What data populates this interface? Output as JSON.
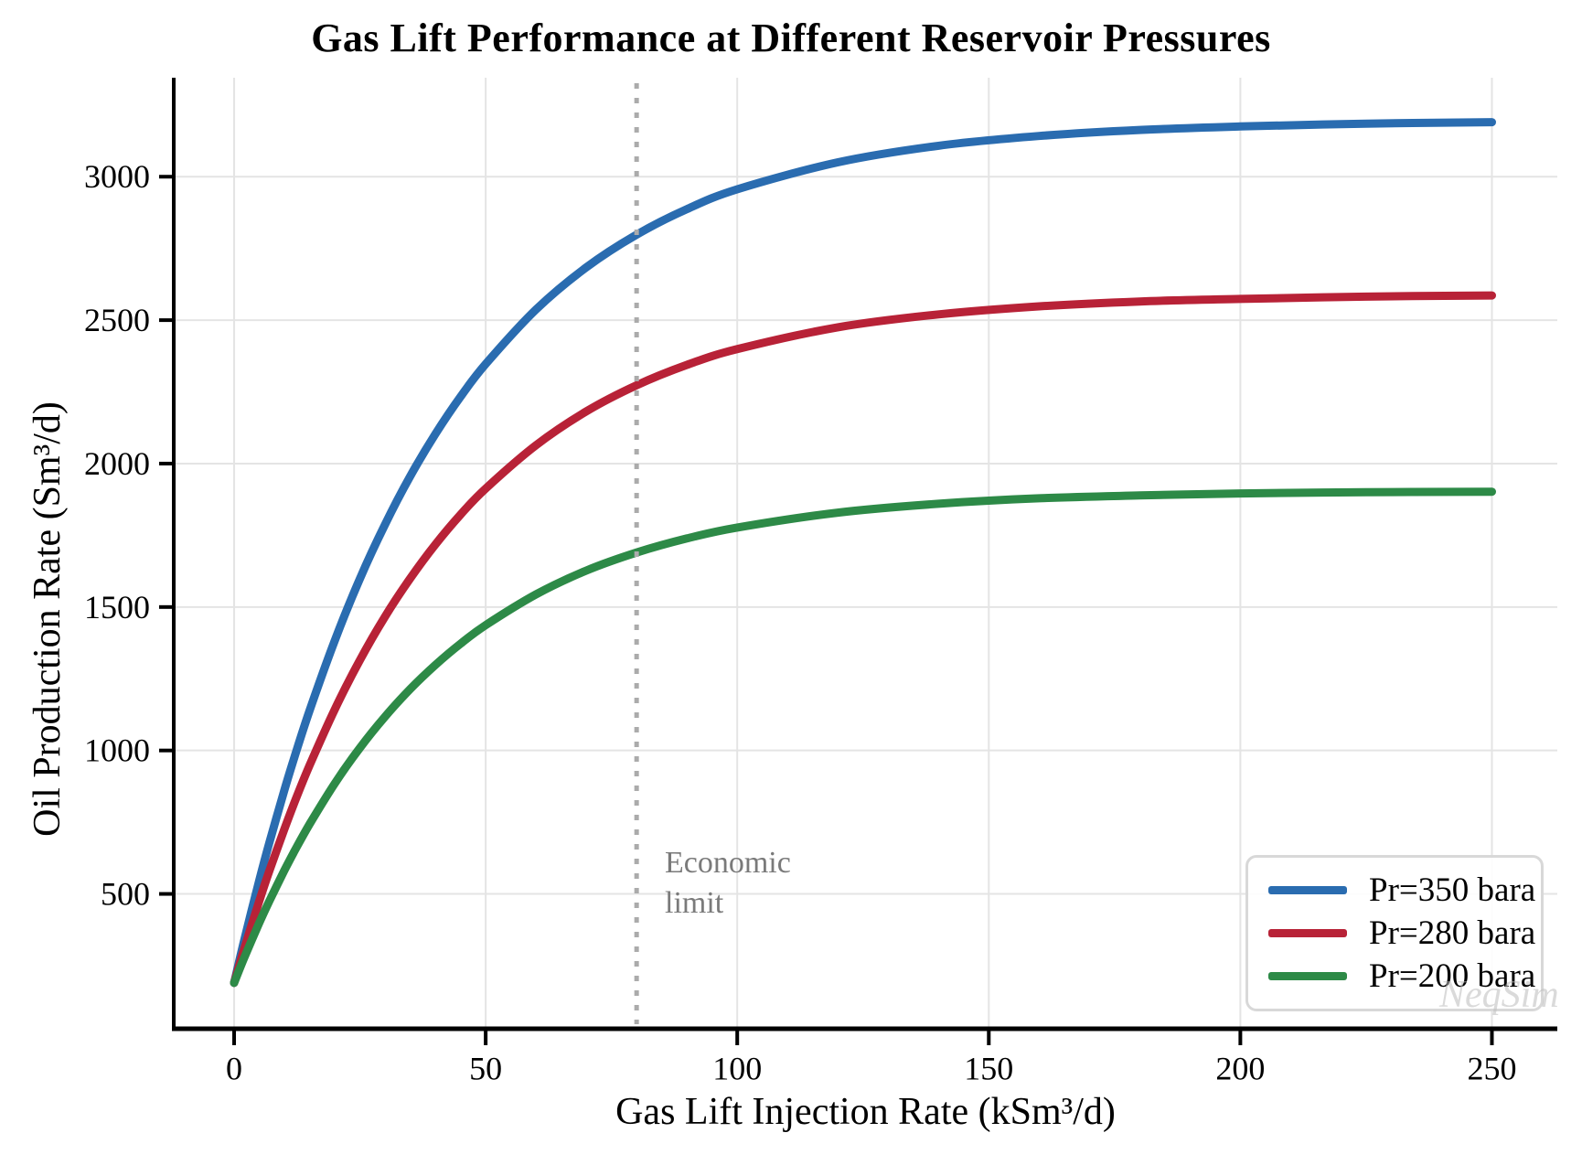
{
  "chart_data": {
    "type": "line",
    "title": "Gas Lift Performance at Different Reservoir Pressures",
    "xlabel": "Gas Lift Injection Rate (kSm³/d)",
    "ylabel": "Oil Production Rate (Sm³/d)",
    "xlim": [
      -12,
      263
    ],
    "ylim": [
      30,
      3345
    ],
    "xticks": [
      0,
      50,
      100,
      150,
      200,
      250
    ],
    "yticks": [
      500,
      1000,
      1500,
      2000,
      2500,
      3000
    ],
    "grid": true,
    "legend_position": "lower right",
    "x": [
      0,
      2,
      5,
      7,
      10,
      12,
      15,
      20,
      25,
      30,
      35,
      40,
      45,
      50,
      60,
      70,
      80,
      90,
      100,
      120,
      140,
      160,
      180,
      200,
      225,
      250
    ],
    "series": [
      {
        "name": "Pr=350 bara",
        "color": "#2a6cb0",
        "values": [
          190,
          338,
          547,
          678,
          862,
          977,
          1139,
          1383,
          1599,
          1788,
          1956,
          2103,
          2233,
          2347,
          2537,
          2684,
          2798,
          2887,
          2956,
          3050,
          3108,
          3142,
          3163,
          3175,
          3185,
          3190
        ]
      },
      {
        "name": "Pr=280 bara",
        "color": "#b82237",
        "values": [
          190,
          308,
          475,
          580,
          726,
          819,
          948,
          1143,
          1315,
          1467,
          1600,
          1718,
          1822,
          1913,
          2064,
          2182,
          2273,
          2344,
          2399,
          2475,
          2520,
          2548,
          2565,
          2574,
          2582,
          2586
        ]
      },
      {
        "name": "Pr=200 bara",
        "color": "#2d8a47",
        "values": [
          190,
          277,
          399,
          475,
          582,
          649,
          743,
          885,
          1009,
          1118,
          1214,
          1298,
          1372,
          1437,
          1544,
          1627,
          1690,
          1739,
          1777,
          1829,
          1860,
          1879,
          1889,
          1896,
          1900,
          1902
        ]
      }
    ],
    "annotation": {
      "text": "Economic\nlimit",
      "x": 80
    },
    "economic_limit_x": 80,
    "watermark": "NeqSim",
    "colors": {
      "grid": "#e4e4e4",
      "spine": "#000000",
      "economic_limit_line": "#ababab",
      "annotation_text": "#7a7a7a"
    }
  }
}
